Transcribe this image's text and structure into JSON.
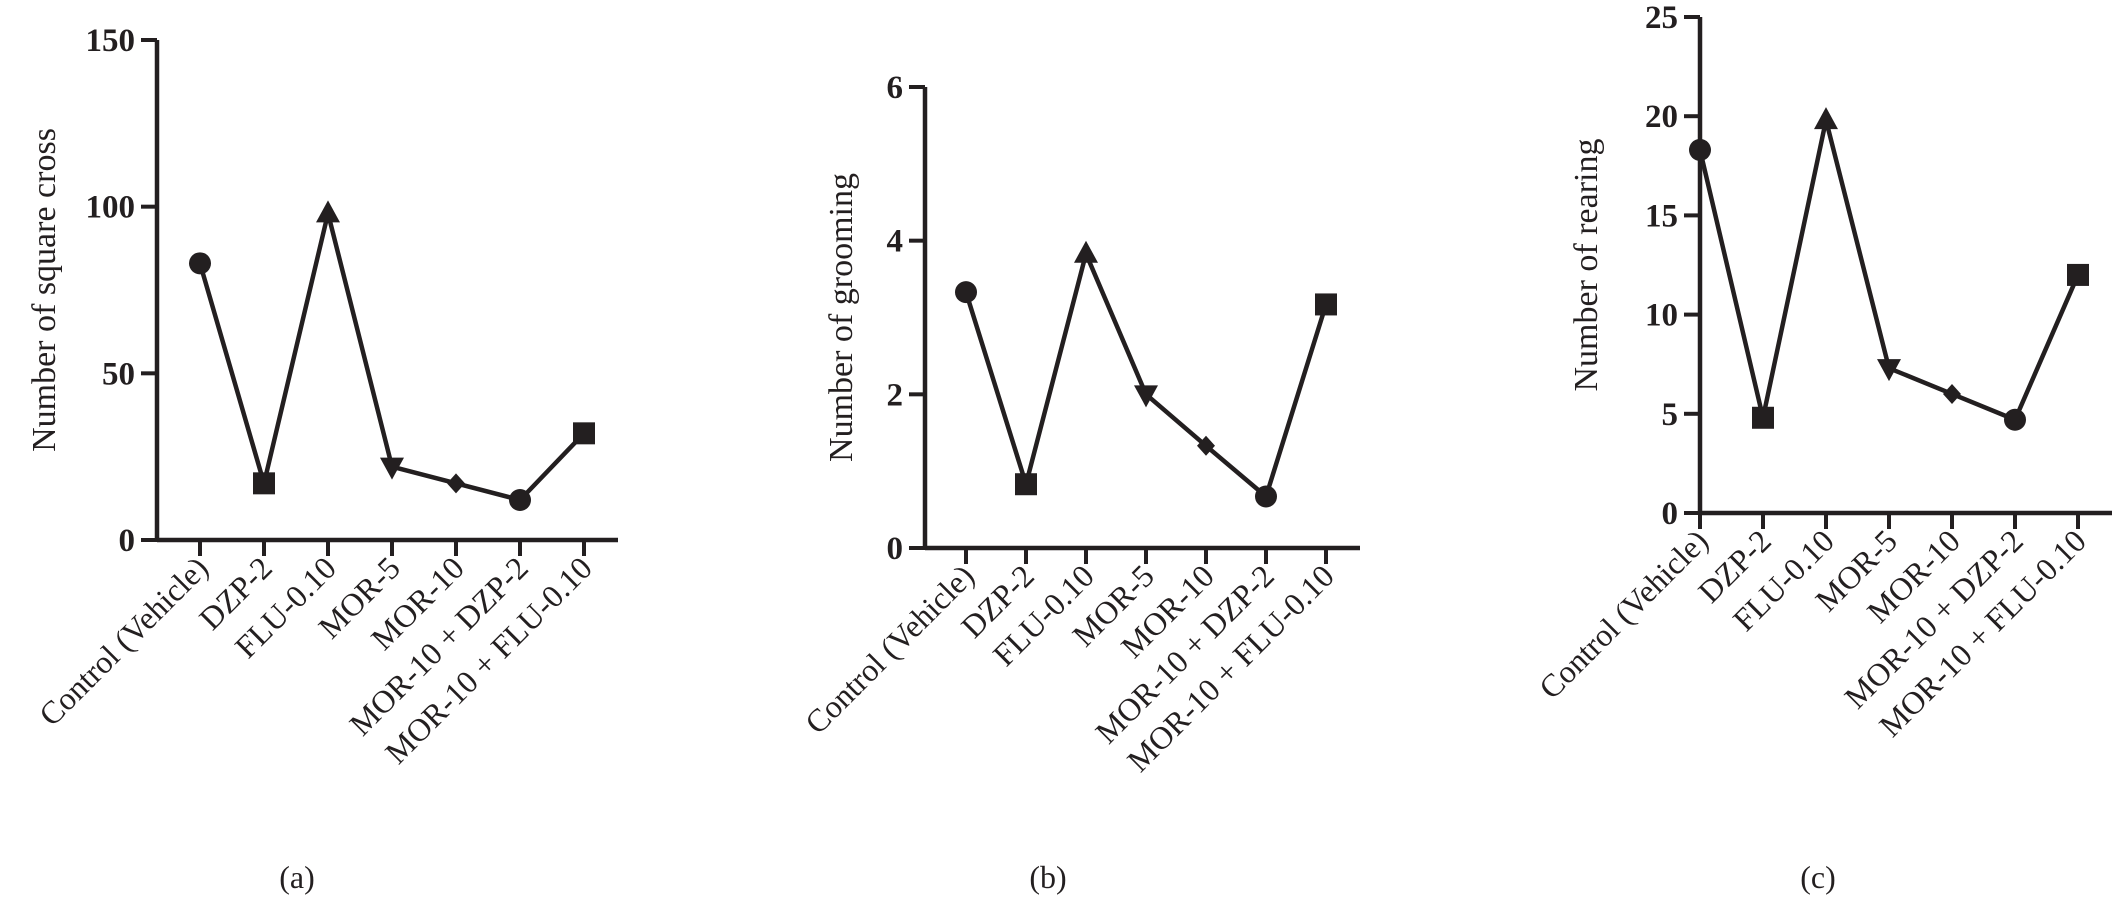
{
  "chart_data": [
    {
      "type": "line",
      "panel_label": "(a)",
      "ylabel": "Number of square cross",
      "categories": [
        "Control (Vehicle)",
        "DZP-2",
        "FLU-0.10",
        "MOR-5",
        "MOR-10",
        "MOR-10 + DZP-2",
        "MOR-10 + FLU-0.10"
      ],
      "values": [
        83,
        17,
        98,
        22,
        17,
        12,
        32
      ],
      "markers": [
        "circle",
        "square",
        "triangle-up",
        "triangle-down",
        "diamond",
        "circle",
        "square"
      ],
      "ylim": [
        0,
        150
      ],
      "yticks": [
        0,
        50,
        100,
        150
      ],
      "grid": false
    },
    {
      "type": "line",
      "panel_label": "(b)",
      "ylabel": "Number of grooming",
      "categories": [
        "Control (Vehicle)",
        "DZP-2",
        "FLU-0.10",
        "MOR-5",
        "MOR-10",
        "MOR-10 + DZP-2",
        "MOR-10 + FLU-0.10"
      ],
      "values": [
        3.33,
        0.83,
        3.83,
        2.0,
        1.33,
        0.67,
        3.17
      ],
      "markers": [
        "circle",
        "square",
        "triangle-up",
        "triangle-down",
        "diamond",
        "circle",
        "square"
      ],
      "ylim": [
        0,
        6
      ],
      "yticks": [
        0,
        2,
        4,
        6
      ],
      "grid": false
    },
    {
      "type": "line",
      "panel_label": "(c)",
      "ylabel": "Number of rearing",
      "categories": [
        "Control (Vehicle)",
        "DZP-2",
        "FLU-0.10",
        "MOR-5",
        "MOR-10",
        "MOR-10 + DZP-2",
        "MOR-10 + FLU-0.10"
      ],
      "values": [
        18.3,
        4.8,
        19.8,
        7.3,
        6.0,
        4.7,
        12.0
      ],
      "markers": [
        "circle",
        "square",
        "triangle-up",
        "triangle-down",
        "diamond",
        "circle",
        "square"
      ],
      "ylim": [
        0,
        25
      ],
      "yticks": [
        0,
        5,
        10,
        15,
        20,
        25
      ],
      "grid": false
    }
  ]
}
